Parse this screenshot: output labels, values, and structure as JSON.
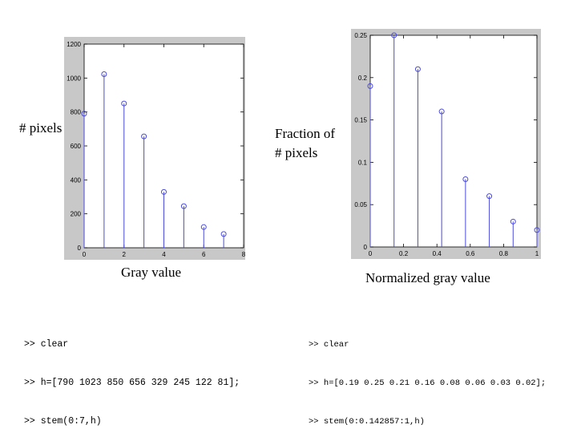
{
  "colors": {
    "stem": "#4a4adf",
    "panel": "#c8c8c8",
    "plot_bg": "#ffffff"
  },
  "chart_data": [
    {
      "type": "stem",
      "x": [
        0,
        1,
        2,
        3,
        4,
        5,
        6,
        7
      ],
      "values": [
        790,
        1023,
        850,
        656,
        329,
        245,
        122,
        81
      ],
      "xlim": [
        0,
        8
      ],
      "ylim": [
        0,
        1200
      ],
      "xticks": [
        0,
        2,
        4,
        6,
        8
      ],
      "yticks": [
        0,
        200,
        400,
        600,
        800,
        1000,
        1200
      ],
      "ylabel": "# pixels",
      "xlabel": "Gray value",
      "code": [
        ">> clear",
        ">> h=[790 1023 850 656 329 245 122 81];",
        ">> stem(0:7,h)"
      ]
    },
    {
      "type": "stem",
      "x": [
        0,
        0.142857,
        0.285714,
        0.428571,
        0.571429,
        0.714286,
        0.857143,
        1.0
      ],
      "values": [
        0.19,
        0.25,
        0.21,
        0.16,
        0.08,
        0.06,
        0.03,
        0.02
      ],
      "xlim": [
        0,
        1
      ],
      "ylim": [
        0,
        0.25
      ],
      "xticks": [
        0,
        0.2,
        0.4,
        0.6,
        0.8,
        1
      ],
      "yticks": [
        0,
        0.05,
        0.1,
        0.15,
        0.2,
        0.25
      ],
      "ylabel_lines": [
        "Fraction of",
        "# pixels"
      ],
      "xlabel": "Normalized gray value",
      "code": [
        ">> clear",
        ">> h=[0.19 0.25 0.21 0.16 0.08 0.06 0.03 0.02];",
        ">> stem(0:0.142857:1,h)"
      ]
    }
  ]
}
